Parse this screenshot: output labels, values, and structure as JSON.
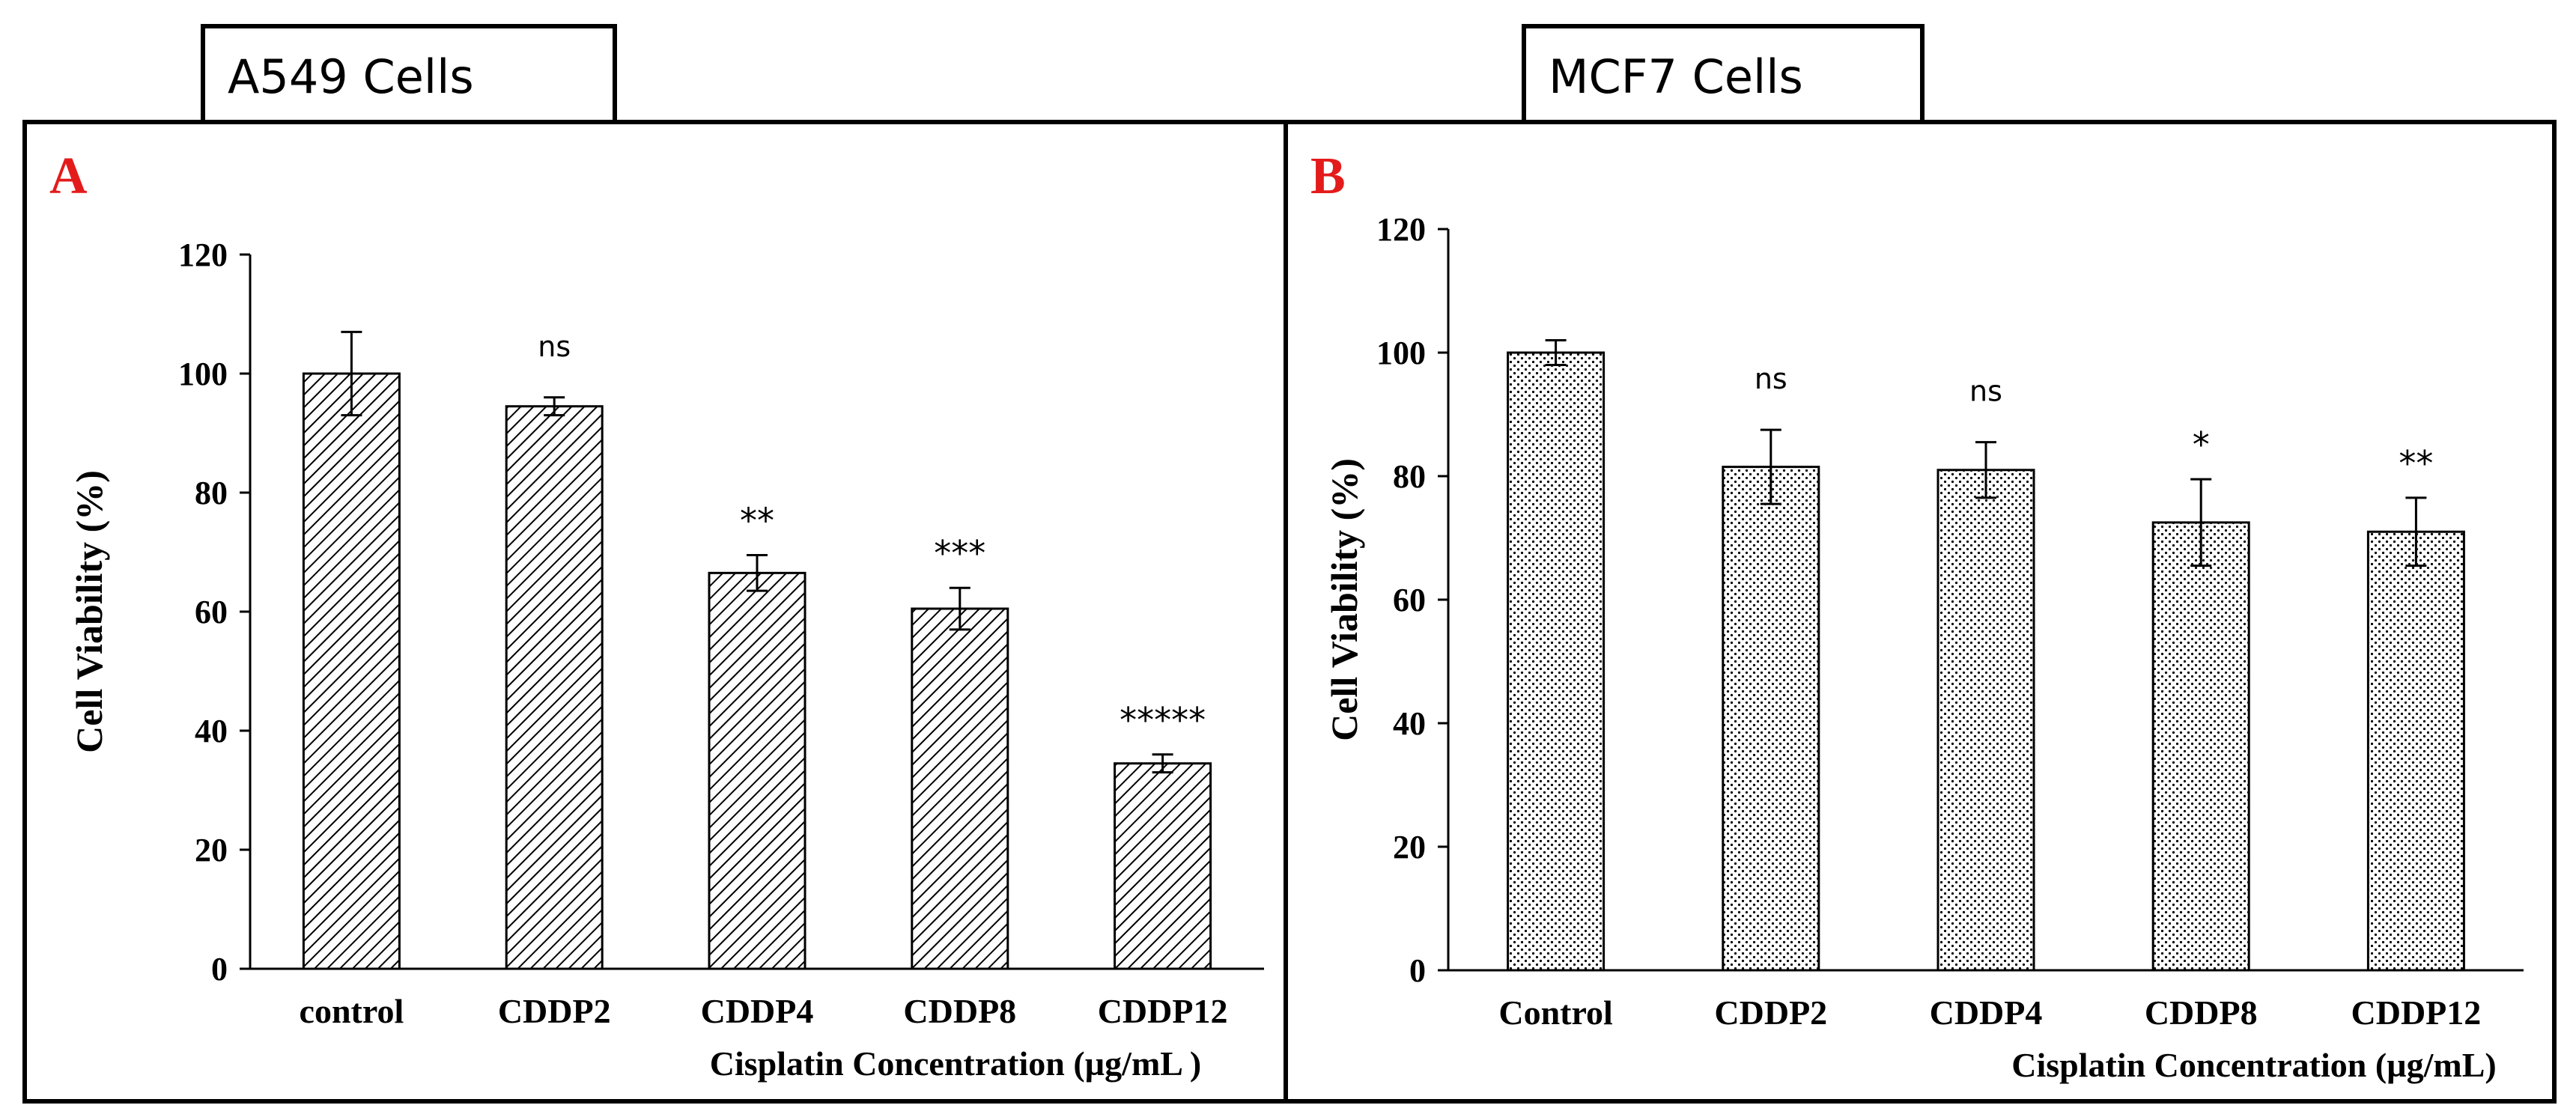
{
  "chart_data": [
    {
      "type": "bar",
      "panel_label": "A",
      "title": "A549 Cells",
      "xlabel": "Cisplatin Concentration (µg/mL )",
      "ylabel": "Cell Viability (%)",
      "ylim": [
        0,
        120
      ],
      "yticks": [
        "0",
        "20",
        "40",
        "60",
        "80",
        "100",
        "120"
      ],
      "categories": [
        "control",
        "CDDP2",
        "CDDP4",
        "CDDP8",
        "CDDP12"
      ],
      "values": [
        100,
        94.5,
        66.5,
        60.5,
        34.5
      ],
      "errors": [
        7,
        1.5,
        3,
        3.5,
        1.5
      ],
      "significance": [
        "",
        "ns",
        "**",
        "***",
        "*****"
      ],
      "pattern": "diagonal-hatch",
      "bar_color": "#000000"
    },
    {
      "type": "bar",
      "panel_label": "B",
      "title": "MCF7 Cells",
      "xlabel": "Cisplatin Concentration (µg/mL)",
      "ylabel": "Cell Viability (%)",
      "ylim": [
        0,
        120
      ],
      "yticks": [
        "0",
        "20",
        "40",
        "60",
        "80",
        "100",
        "120"
      ],
      "categories": [
        "Control",
        "CDDP2",
        "CDDP4",
        "CDDP8",
        "CDDP12"
      ],
      "values": [
        100,
        81.5,
        81,
        72.5,
        71
      ],
      "errors": [
        2,
        6,
        4.5,
        7,
        5.5
      ],
      "significance": [
        "",
        "ns",
        "ns",
        "*",
        "**"
      ],
      "pattern": "dots",
      "bar_color": "#000000"
    }
  ],
  "colors": {
    "panel_label": "#e41b1b",
    "frame": "#000000"
  }
}
